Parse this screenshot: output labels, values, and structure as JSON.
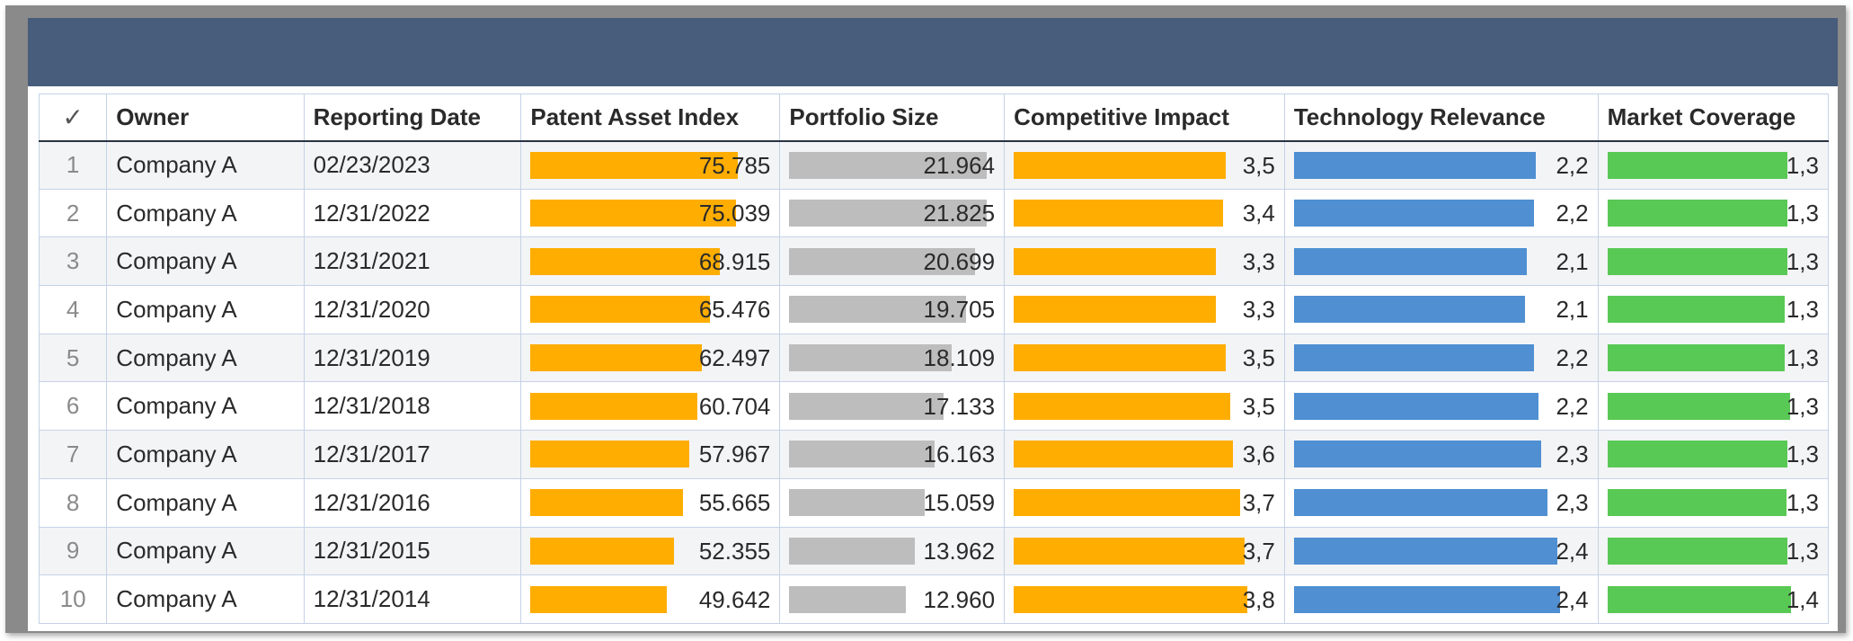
{
  "columns": {
    "check_symbol": "✓",
    "owner": "Owner",
    "reporting_date": "Reporting Date",
    "patent_asset_index": "Patent Asset Index",
    "portfolio_size": "Portfolio Size",
    "competitive_impact": "Competitive Impact",
    "technology_relevance": "Technology Relevance",
    "market_coverage": "Market Coverage"
  },
  "colors": {
    "header_band": "#485c7b",
    "patent_asset_index": "#ffad00",
    "portfolio_size": "#bdbdbd",
    "competitive_impact": "#ffad00",
    "technology_relevance": "#4f8fd2",
    "market_coverage": "#59c955"
  },
  "bar_fill": {
    "patent_asset_index": [
      0.865,
      0.858,
      0.788,
      0.749,
      0.714,
      0.694,
      0.663,
      0.636,
      0.599,
      0.568
    ],
    "portfolio_size": [
      0.96,
      0.96,
      0.905,
      0.86,
      0.79,
      0.75,
      0.706,
      0.658,
      0.61,
      0.566
    ],
    "competitive_impact": [
      0.81,
      0.8,
      0.775,
      0.775,
      0.81,
      0.83,
      0.84,
      0.865,
      0.885,
      0.895
    ],
    "technology_relevance": [
      0.82,
      0.815,
      0.79,
      0.785,
      0.815,
      0.83,
      0.84,
      0.86,
      0.895,
      0.905
    ],
    "market_coverage": [
      0.85,
      0.85,
      0.85,
      0.84,
      0.84,
      0.865,
      0.85,
      0.845,
      0.85,
      0.87
    ]
  },
  "rows": [
    {
      "index": "1",
      "owner": "Company A",
      "date": "02/23/2023",
      "patent_asset_index": "75.785",
      "portfolio_size": "21.964",
      "competitive_impact": "3,5",
      "technology_relevance": "2,2",
      "market_coverage": "1,3"
    },
    {
      "index": "2",
      "owner": "Company A",
      "date": "12/31/2022",
      "patent_asset_index": "75.039",
      "portfolio_size": "21.825",
      "competitive_impact": "3,4",
      "technology_relevance": "2,2",
      "market_coverage": "1,3"
    },
    {
      "index": "3",
      "owner": "Company A",
      "date": "12/31/2021",
      "patent_asset_index": "68.915",
      "portfolio_size": "20.699",
      "competitive_impact": "3,3",
      "technology_relevance": "2,1",
      "market_coverage": "1,3"
    },
    {
      "index": "4",
      "owner": "Company A",
      "date": "12/31/2020",
      "patent_asset_index": "65.476",
      "portfolio_size": "19.705",
      "competitive_impact": "3,3",
      "technology_relevance": "2,1",
      "market_coverage": "1,3"
    },
    {
      "index": "5",
      "owner": "Company A",
      "date": "12/31/2019",
      "patent_asset_index": "62.497",
      "portfolio_size": "18.109",
      "competitive_impact": "3,5",
      "technology_relevance": "2,2",
      "market_coverage": "1,3"
    },
    {
      "index": "6",
      "owner": "Company A",
      "date": "12/31/2018",
      "patent_asset_index": "60.704",
      "portfolio_size": "17.133",
      "competitive_impact": "3,5",
      "technology_relevance": "2,2",
      "market_coverage": "1,3"
    },
    {
      "index": "7",
      "owner": "Company A",
      "date": "12/31/2017",
      "patent_asset_index": "57.967",
      "portfolio_size": "16.163",
      "competitive_impact": "3,6",
      "technology_relevance": "2,3",
      "market_coverage": "1,3"
    },
    {
      "index": "8",
      "owner": "Company A",
      "date": "12/31/2016",
      "patent_asset_index": "55.665",
      "portfolio_size": "15.059",
      "competitive_impact": "3,7",
      "technology_relevance": "2,3",
      "market_coverage": "1,3"
    },
    {
      "index": "9",
      "owner": "Company A",
      "date": "12/31/2015",
      "patent_asset_index": "52.355",
      "portfolio_size": "13.962",
      "competitive_impact": "3,7",
      "technology_relevance": "2,4",
      "market_coverage": "1,3"
    },
    {
      "index": "10",
      "owner": "Company A",
      "date": "12/31/2014",
      "patent_asset_index": "49.642",
      "portfolio_size": "12.960",
      "competitive_impact": "3,8",
      "technology_relevance": "2,4",
      "market_coverage": "1,4"
    }
  ]
}
